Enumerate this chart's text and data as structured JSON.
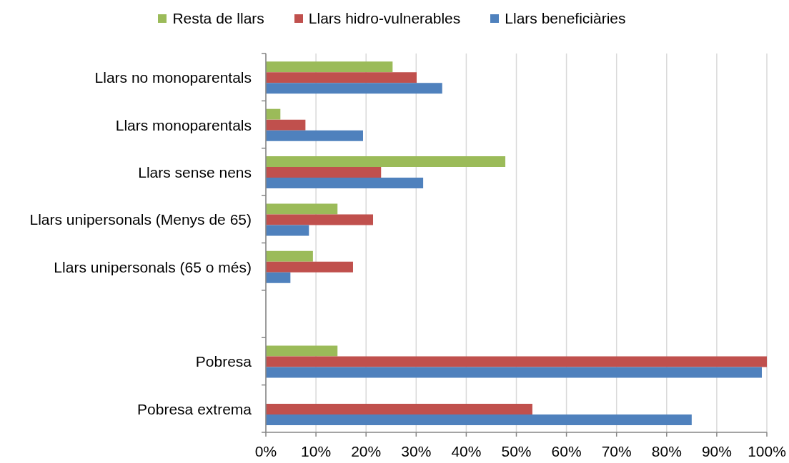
{
  "chart_data": {
    "type": "bar",
    "orientation": "horizontal",
    "categories": [
      "Llars no monoparentals",
      "Llars monoparentals",
      "Llars sense nens",
      "Llars unipersonals (Menys de 65)",
      "Llars unipersonals (65 o més)",
      null,
      "Pobresa",
      "Pobresa extrema"
    ],
    "series": [
      {
        "name": "Resta de llars",
        "color": "#9bbb59",
        "values": [
          25.3,
          2.9,
          47.8,
          14.3,
          9.4,
          null,
          14.3,
          null
        ]
      },
      {
        "name": "Llars hidro-vulnerables",
        "color": "#c0504d",
        "values": [
          30.1,
          7.9,
          23.0,
          21.4,
          17.4,
          null,
          100,
          53.2
        ]
      },
      {
        "name": "Llars beneficiàries",
        "color": "#4f81bd",
        "values": [
          35.2,
          19.4,
          31.4,
          8.6,
          4.9,
          null,
          99.0,
          85.0
        ]
      }
    ],
    "xlim": [
      0,
      100
    ],
    "xticks": [
      {
        "value": 0,
        "label": "0%"
      },
      {
        "value": 10,
        "label": "10%"
      },
      {
        "value": 20,
        "label": "20%"
      },
      {
        "value": 30,
        "label": "30%"
      },
      {
        "value": 40,
        "label": "40%"
      },
      {
        "value": 50,
        "label": "50%"
      },
      {
        "value": 60,
        "label": "60%"
      },
      {
        "value": 70,
        "label": "70%"
      },
      {
        "value": 80,
        "label": "80%"
      },
      {
        "value": 90,
        "label": "90%"
      },
      {
        "value": 100,
        "label": "100%"
      }
    ],
    "grid": "x",
    "legend": "top"
  }
}
